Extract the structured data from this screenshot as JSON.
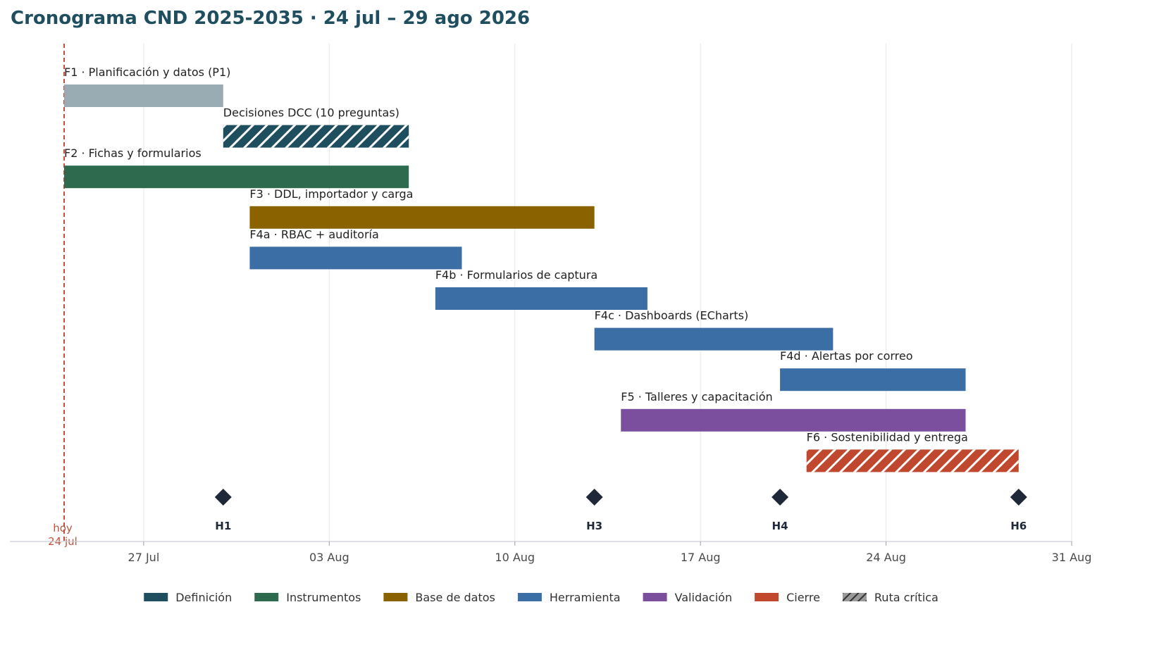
{
  "chart_data": {
    "type": "gantt",
    "title": "Cronograma CND 2025-2035 · 24 jul – 29 ago 2026",
    "x_axis": {
      "type": "date",
      "range": [
        "2026-07-24",
        "2026-08-31"
      ],
      "ticks": [
        {
          "date": "2026-07-27",
          "label": "27 Jul"
        },
        {
          "date": "2026-08-03",
          "label": "03 Aug"
        },
        {
          "date": "2026-08-10",
          "label": "10 Aug"
        },
        {
          "date": "2026-08-17",
          "label": "17 Aug"
        },
        {
          "date": "2026-08-24",
          "label": "24 Aug"
        },
        {
          "date": "2026-08-31",
          "label": "31 Aug"
        }
      ],
      "grid": true
    },
    "today": {
      "date": "2026-07-24",
      "label_line1": "hoy",
      "label_line2": "24 jul"
    },
    "tasks": [
      {
        "label": "F1 · Planificación y datos (P1)",
        "start": "2026-07-24",
        "end": "2026-07-30",
        "color": "#9aacb3",
        "hatched": false
      },
      {
        "label": "Decisiones DCC (10 preguntas)",
        "start": "2026-07-30",
        "end": "2026-08-06",
        "color": "#1f4e5f",
        "hatched": true
      },
      {
        "label": "F2 · Fichas y formularios",
        "start": "2026-07-24",
        "end": "2026-08-06",
        "color": "#2e6b4e",
        "hatched": false
      },
      {
        "label": "F3 · DDL, importador y carga",
        "start": "2026-07-31",
        "end": "2026-08-13",
        "color": "#8a6200",
        "hatched": false
      },
      {
        "label": "F4a · RBAC + auditoría",
        "start": "2026-07-31",
        "end": "2026-08-08",
        "color": "#3c6ea6",
        "hatched": false
      },
      {
        "label": "F4b · Formularios de captura",
        "start": "2026-08-07",
        "end": "2026-08-15",
        "color": "#3c6ea6",
        "hatched": false
      },
      {
        "label": "F4c · Dashboards (ECharts)",
        "start": "2026-08-13",
        "end": "2026-08-22",
        "color": "#3c6ea6",
        "hatched": false
      },
      {
        "label": "F4d · Alertas por correo",
        "start": "2026-08-20",
        "end": "2026-08-27",
        "color": "#3c6ea6",
        "hatched": false
      },
      {
        "label": "F5 · Talleres y capacitación",
        "start": "2026-08-14",
        "end": "2026-08-27",
        "color": "#7b4f9e",
        "hatched": false
      },
      {
        "label": "F6 · Sostenibilidad y entrega",
        "start": "2026-08-21",
        "end": "2026-08-29",
        "color": "#c0482e",
        "hatched": true
      }
    ],
    "milestones": [
      {
        "label": "H1",
        "date": "2026-07-30"
      },
      {
        "label": "H3",
        "date": "2026-08-13"
      },
      {
        "label": "H4",
        "date": "2026-08-20"
      },
      {
        "label": "H6",
        "date": "2026-08-29"
      }
    ],
    "legend": {
      "placement": "bottom",
      "items": [
        {
          "label": "Definición",
          "color": "#1f4e5f",
          "hatched": false
        },
        {
          "label": "Instrumentos",
          "color": "#2e6b4e",
          "hatched": false
        },
        {
          "label": "Base de datos",
          "color": "#8a6200",
          "hatched": false
        },
        {
          "label": "Herramienta",
          "color": "#3c6ea6",
          "hatched": false
        },
        {
          "label": "Validación",
          "color": "#7b4f9e",
          "hatched": false
        },
        {
          "label": "Cierre",
          "color": "#c0482e",
          "hatched": false
        },
        {
          "label": "Ruta crítica",
          "color": "#999999",
          "hatched": true
        }
      ]
    }
  }
}
